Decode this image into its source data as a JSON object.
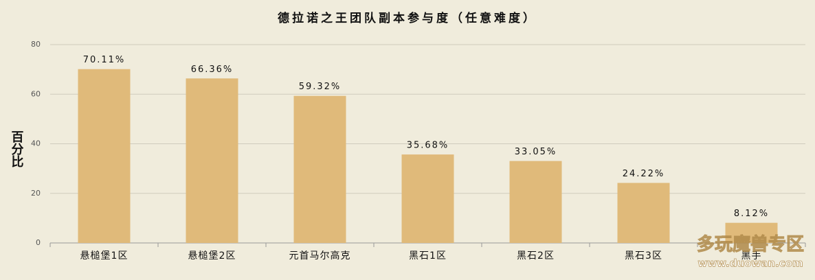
{
  "chart_data": {
    "type": "bar",
    "title": "德拉诺之王团队副本参与度（任意难度）",
    "y_label": "百分比",
    "categories": [
      "悬槌堡1区",
      "悬槌堡2区",
      "元首马尔高克",
      "黑石1区",
      "黑石2区",
      "黑石3区",
      "黑手"
    ],
    "values": [
      70.11,
      66.36,
      59.32,
      35.68,
      33.05,
      24.22,
      8.12
    ],
    "value_labels": [
      "70.11%",
      "66.36%",
      "59.32%",
      "35.68%",
      "33.05%",
      "24.22%",
      "8.12%"
    ],
    "color": "#e0ba7a",
    "ylim": [
      0,
      80
    ],
    "yticks": [
      0,
      20,
      40,
      60,
      80
    ],
    "grid": true,
    "watermark": "多玩魔兽专区",
    "watermark_url": "www.duowan.com"
  }
}
